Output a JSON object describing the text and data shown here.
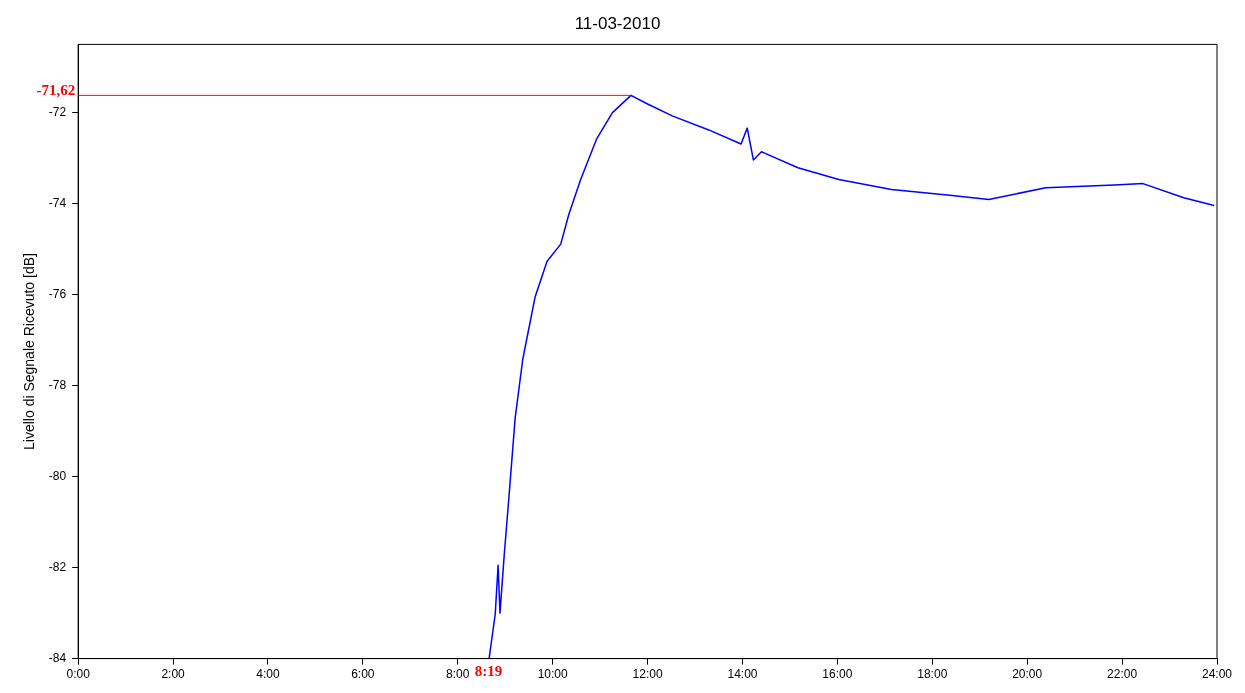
{
  "chart_data": {
    "type": "line",
    "title": "11-03-2010",
    "ylabel": "Livello di Segnale Ricevuto [dB]",
    "x": [
      8.66,
      8.79,
      8.85,
      8.89,
      8.98,
      9.08,
      9.21,
      9.37,
      9.63,
      9.88,
      10.17,
      10.34,
      10.59,
      10.93,
      11.26,
      11.65,
      12.0,
      12.52,
      13.29,
      13.97,
      14.1,
      14.23,
      14.4,
      15.17,
      16.03,
      17.14,
      18.42,
      19.19,
      20.39,
      21.84,
      22.44,
      23.3,
      23.94
    ],
    "series": [
      {
        "color": "#0000ff",
        "values": [
          -84.0,
          -83.02,
          -81.95,
          -83.0,
          -81.71,
          -80.43,
          -78.71,
          -77.42,
          -76.05,
          -75.27,
          -74.89,
          -74.24,
          -73.47,
          -72.57,
          -72.0,
          -71.62,
          -71.81,
          -72.07,
          -72.38,
          -72.69,
          -72.34,
          -73.04,
          -72.86,
          -73.21,
          -73.47,
          -73.69,
          -73.82,
          -73.91,
          -73.65,
          -73.59,
          -73.56,
          -73.87,
          -74.04
        ]
      }
    ],
    "xlim": [
      0,
      24
    ],
    "xticks": [
      {
        "value": 0,
        "label": "0:00"
      },
      {
        "value": 2,
        "label": "2:00"
      },
      {
        "value": 4,
        "label": "4:00"
      },
      {
        "value": 6,
        "label": "6:00"
      },
      {
        "value": 8,
        "label": "8:00"
      },
      {
        "value": 10,
        "label": "10:00"
      },
      {
        "value": 12,
        "label": "12:00"
      },
      {
        "value": 14,
        "label": "14:00"
      },
      {
        "value": 16,
        "label": "16:00"
      },
      {
        "value": 18,
        "label": "18:00"
      },
      {
        "value": 20,
        "label": "20:00"
      },
      {
        "value": 22,
        "label": "22:00"
      },
      {
        "value": 24,
        "label": "24:00"
      }
    ],
    "ylim": [
      -84,
      -70.5
    ],
    "yticks": [
      -84,
      -82,
      -80,
      -78,
      -76,
      -74,
      -72
    ],
    "ref_lines": [
      {
        "axis": "y",
        "value": -71.62,
        "label": "-71,62",
        "color": "#ff0000"
      }
    ],
    "annotations": [
      {
        "text": "8:19",
        "x": 8.65,
        "y": -84
      }
    ],
    "grid": false,
    "legend": false,
    "marker": "none",
    "line_style": "solid"
  }
}
